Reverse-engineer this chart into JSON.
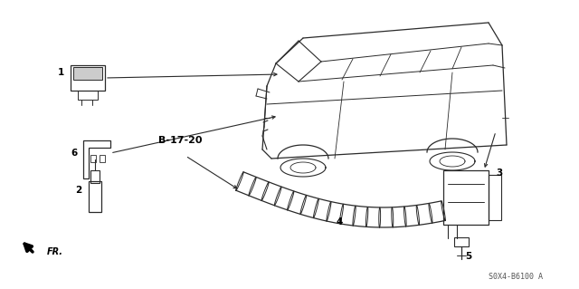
{
  "bg_color": "#ffffff",
  "diagram_number": "S0X4-B6100 A",
  "fr_label": "FR.",
  "b_label": "B-17-20",
  "line_color": "#2a2a2a",
  "figsize": [
    6.4,
    3.19
  ],
  "dpi": 100
}
